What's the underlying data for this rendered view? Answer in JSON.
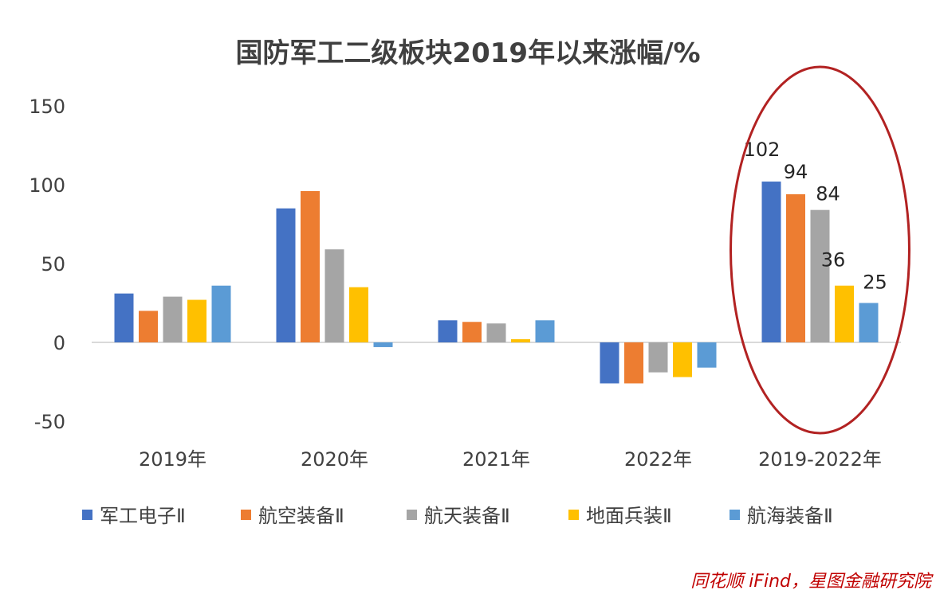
{
  "chart_data": {
    "type": "bar",
    "title": "国防军工二级板块2019年以来涨幅/%",
    "categories": [
      "2019年",
      "2020年",
      "2021年",
      "2022年",
      "2019-2022年"
    ],
    "ylim": [
      -50,
      150
    ],
    "yticks": [
      150,
      100,
      50,
      0,
      -50
    ],
    "grid": false,
    "legend_position": "bottom",
    "series": [
      {
        "name": "军工电子Ⅱ",
        "color": "#4472c4",
        "values": [
          31,
          85,
          14,
          -26,
          102
        ]
      },
      {
        "name": "航空装备Ⅱ",
        "color": "#ed7d31",
        "values": [
          20,
          96,
          13,
          -26,
          94
        ]
      },
      {
        "name": "航天装备Ⅱ",
        "color": "#a5a5a5",
        "values": [
          29,
          59,
          12,
          -19,
          84
        ]
      },
      {
        "name": "地面兵装Ⅱ",
        "color": "#ffc000",
        "values": [
          27,
          35,
          2,
          -22,
          36
        ]
      },
      {
        "name": "航海装备Ⅱ",
        "color": "#5b9bd5",
        "values": [
          36,
          -3,
          14,
          -16,
          25
        ]
      }
    ],
    "data_labels": [
      {
        "category_index": 4,
        "series_index": 0,
        "text": "102"
      },
      {
        "category_index": 4,
        "series_index": 1,
        "text": "94"
      },
      {
        "category_index": 4,
        "series_index": 2,
        "text": "84"
      },
      {
        "category_index": 4,
        "series_index": 3,
        "text": "36"
      },
      {
        "category_index": 4,
        "series_index": 4,
        "text": "25"
      }
    ],
    "highlight": {
      "category_index": 4,
      "shape": "ellipse",
      "color": "#b22222"
    },
    "source": "同花顺 iFind，星图金融研究院"
  }
}
